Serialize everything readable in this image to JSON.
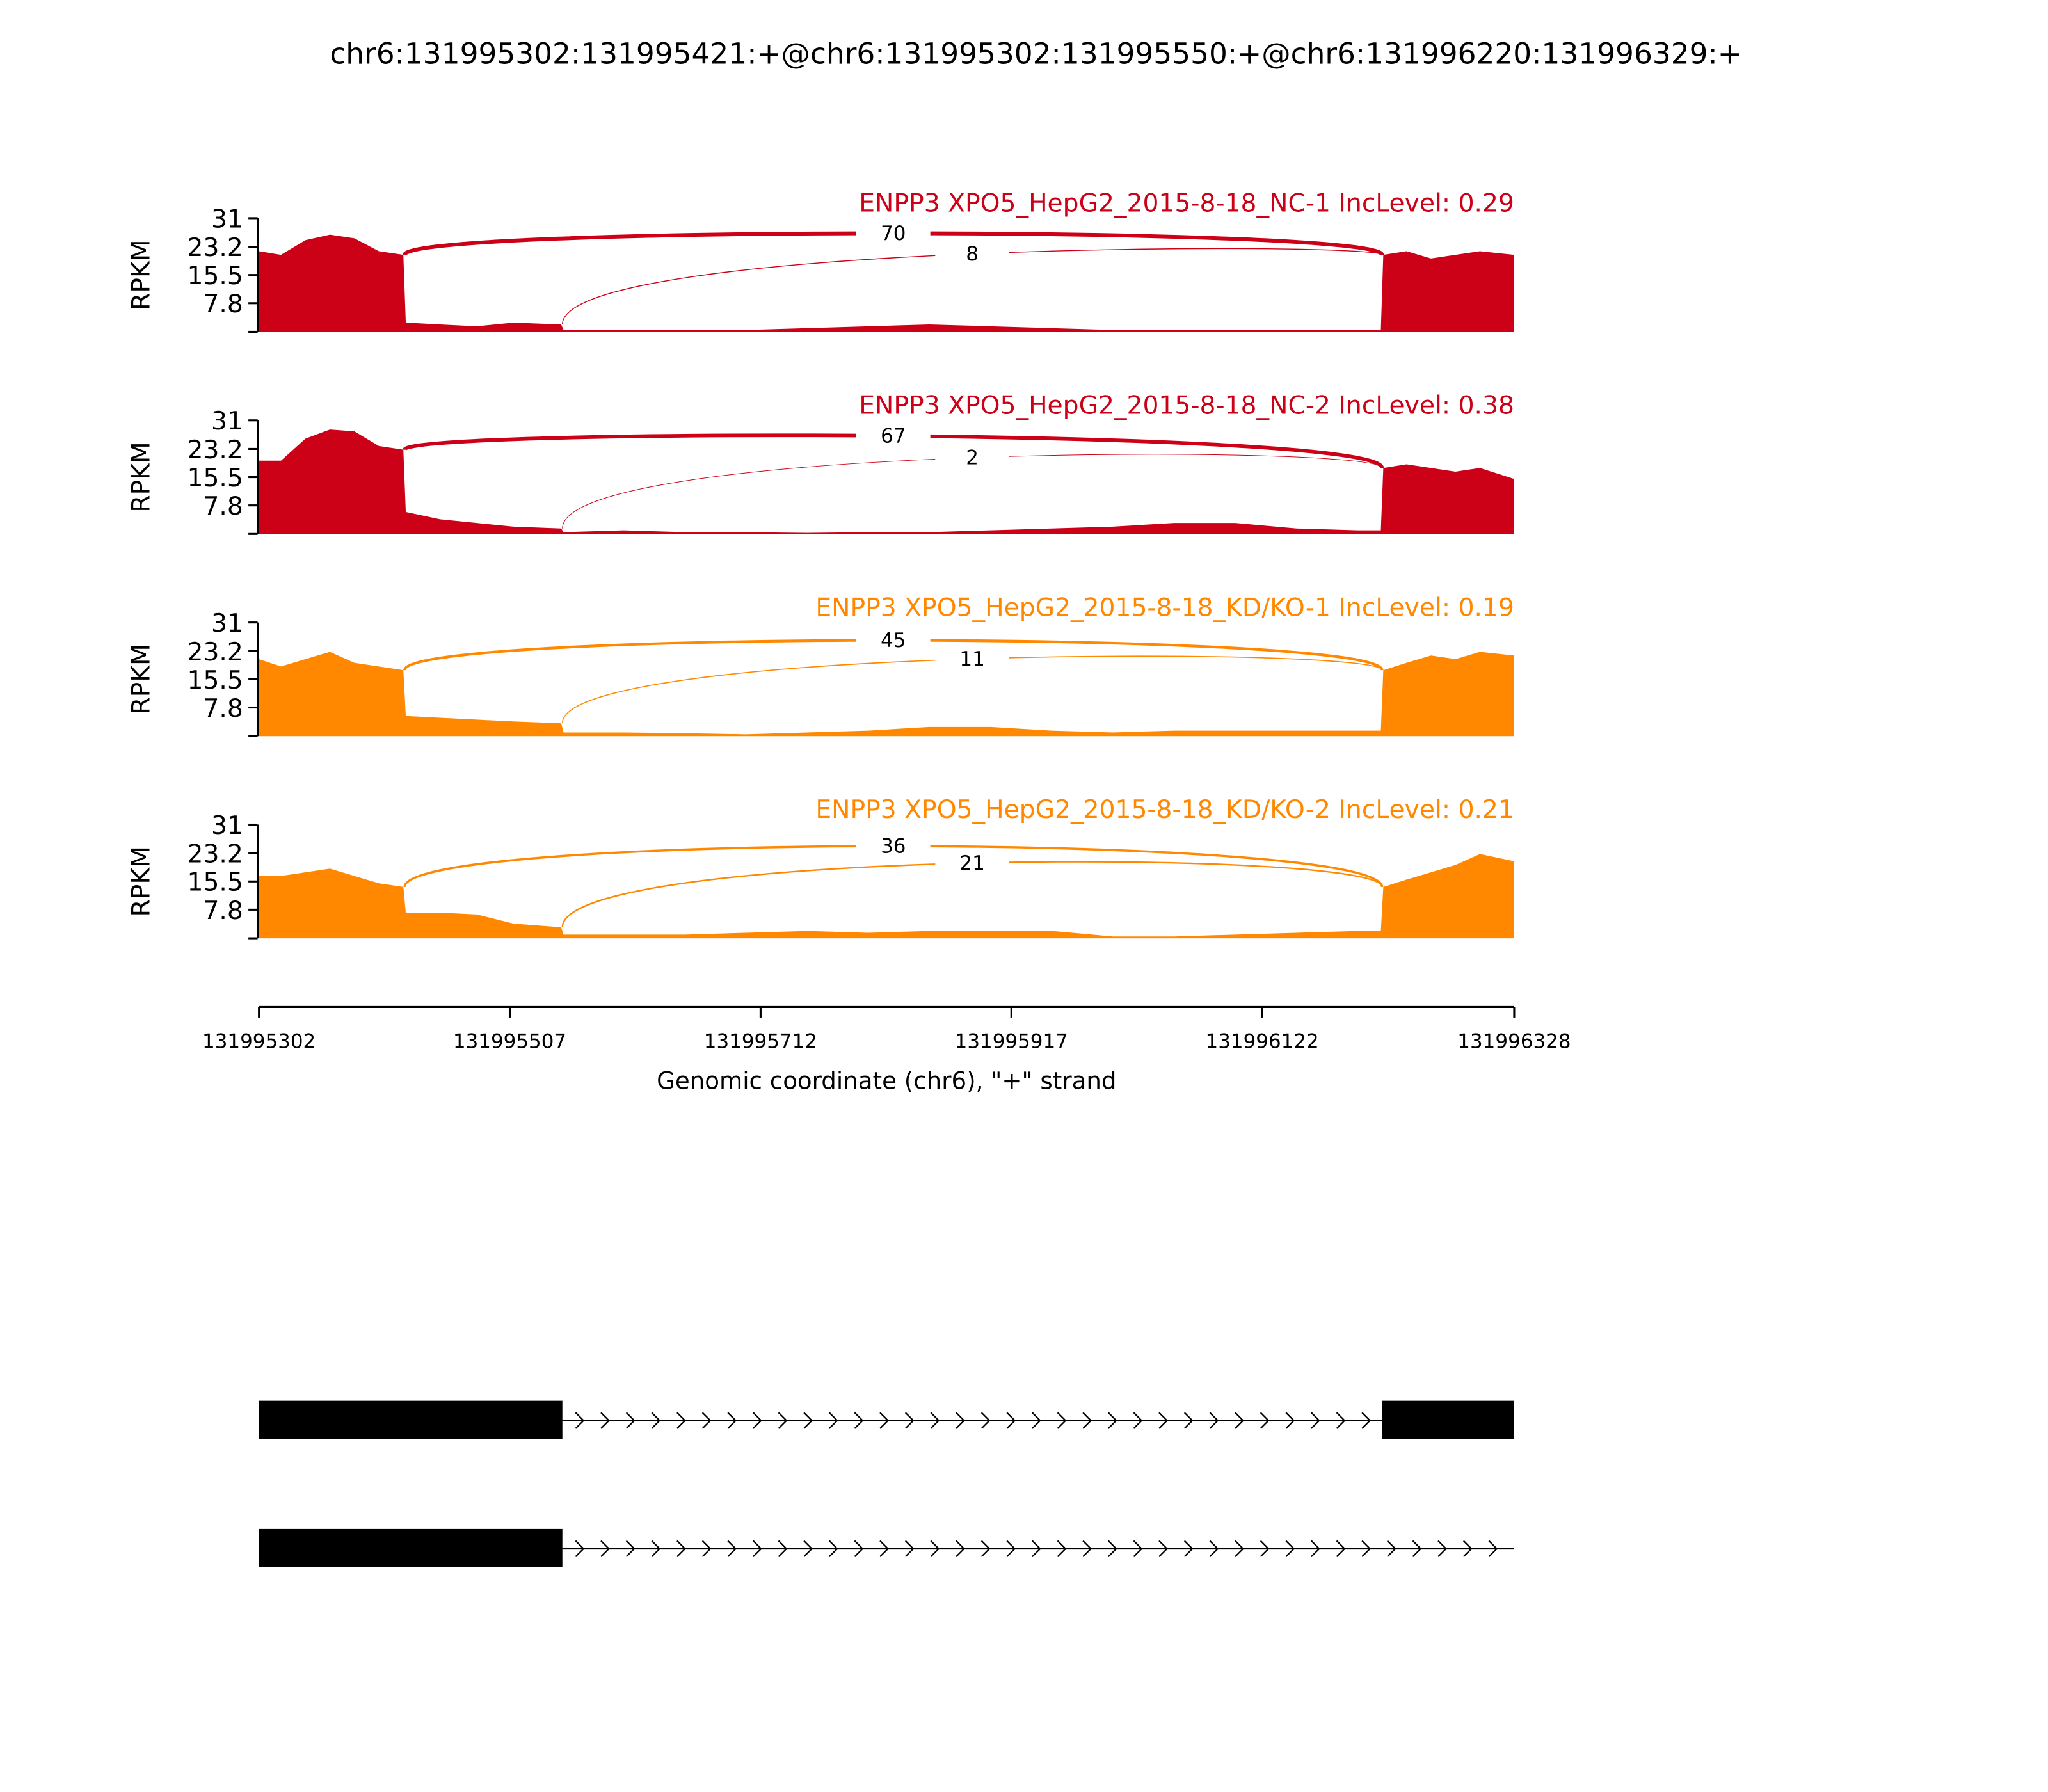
{
  "chart_data": {
    "type": "sashimi",
    "title": "chr6:131995302:131995421:+@chr6:131995302:131995550:+@chr6:131996220:131996329:+",
    "xlim": [
      131995302,
      131996328
    ],
    "xticks": [
      131995302,
      131995507,
      131995712,
      131995917,
      131996122,
      131996328
    ],
    "xlabel": "Genomic coordinate (chr6), \"+\" strand",
    "ylabel": "RPKM",
    "ylim": [
      0,
      31
    ],
    "yticks": [
      7.8,
      15.5,
      23.2,
      31
    ],
    "coverage_x": [
      131995302,
      131995320,
      131995340,
      131995360,
      131995380,
      131995400,
      131995420,
      131995422,
      131995450,
      131995480,
      131995510,
      131995549,
      131995551,
      131995600,
      131995650,
      131995700,
      131995750,
      131995800,
      131995850,
      131995900,
      131995950,
      131996000,
      131996050,
      131996100,
      131996150,
      131996200,
      131996219,
      131996221,
      131996240,
      131996260,
      131996280,
      131996300,
      131996328
    ],
    "junctions": [
      {
        "start": 131995421,
        "end": 131996220
      },
      {
        "start": 131995550,
        "end": 131996220
      }
    ],
    "panels": [
      {
        "label": "ENPP3 XPO5_HepG2_2015-8-18_NC-1 IncLevel: 0.29",
        "color": "#cc0016",
        "coverage": [
          22,
          21,
          25,
          26.5,
          25.5,
          22,
          21,
          2.5,
          2,
          1.5,
          2.5,
          2,
          0.5,
          0.5,
          0.5,
          0.5,
          1,
          1.5,
          2,
          1.5,
          1,
          0.5,
          0.5,
          0.5,
          0.5,
          0.5,
          0.5,
          21,
          22,
          20,
          21,
          22,
          21
        ],
        "junction_counts": [
          70,
          8
        ]
      },
      {
        "label": "ENPP3 XPO5_HepG2_2015-8-18_NC-2 IncLevel: 0.38",
        "color": "#cc0016",
        "coverage": [
          20,
          20,
          26,
          28.5,
          28,
          24,
          23,
          6,
          4,
          3,
          2,
          1.5,
          0.5,
          1,
          0.5,
          0.5,
          0.3,
          0.5,
          0.5,
          1,
          1.5,
          2,
          3,
          3,
          1.5,
          1,
          1,
          18,
          19,
          18,
          17,
          18,
          15
        ],
        "junction_counts": [
          67,
          2
        ]
      },
      {
        "label": "ENPP3 XPO5_HepG2_2015-8-18_KD/KO-1 IncLevel: 0.19",
        "color": "#ff8800",
        "coverage": [
          21,
          19,
          21,
          23,
          20,
          19,
          18,
          5.5,
          5,
          4.5,
          4,
          3.5,
          1,
          1,
          0.8,
          0.5,
          1,
          1.5,
          2.5,
          2.5,
          1.5,
          1,
          1.5,
          1.5,
          1.5,
          1.5,
          1.5,
          18,
          20,
          22,
          21,
          23,
          22
        ],
        "junction_counts": [
          45,
          11
        ]
      },
      {
        "label": "ENPP3 XPO5_HepG2_2015-8-18_KD/KO-2 IncLevel: 0.21",
        "color": "#ff8800",
        "coverage": [
          17,
          17,
          18,
          19,
          17,
          15,
          14,
          7,
          7,
          6.5,
          4,
          3,
          1,
          1,
          1,
          1.5,
          2,
          1.5,
          2,
          2,
          2,
          0.5,
          0.5,
          1,
          1.5,
          2,
          2,
          14,
          16,
          18,
          20,
          23,
          21
        ],
        "junction_counts": [
          36,
          21
        ]
      }
    ],
    "transcripts": [
      {
        "exons": [
          [
            131995302,
            131995550
          ],
          [
            131996220,
            131996328
          ]
        ],
        "intron": [
          131995550,
          131996220
        ]
      },
      {
        "exons": [
          [
            131995302,
            131995550
          ]
        ],
        "intron": [
          131995550,
          131996328
        ]
      }
    ]
  }
}
